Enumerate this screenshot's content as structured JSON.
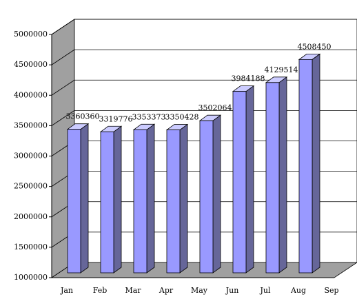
{
  "chart_data": {
    "type": "bar",
    "categories": [
      "Jan",
      "Feb",
      "Mar",
      "Apr",
      "May",
      "Jun",
      "Jul",
      "Aug",
      "Sep"
    ],
    "values": [
      3360360,
      3319776,
      3353373,
      3350428,
      3502064,
      3984188,
      4129514,
      4508450,
      null
    ],
    "color": "#9999ff",
    "ylim": [
      1000000,
      5000000
    ],
    "yticks": [
      1000000,
      1500000,
      2000000,
      2500000,
      3000000,
      3500000,
      4000000,
      4500000,
      5000000
    ],
    "grid": true
  }
}
